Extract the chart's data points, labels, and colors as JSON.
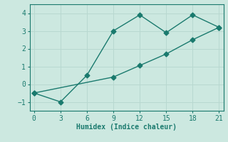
{
  "xlabel": "Humidex (Indice chaleur)",
  "bg_color": "#cce8e0",
  "grid_color": "#b8d8d0",
  "line_color": "#1a7a6e",
  "line1_x": [
    0,
    3,
    6,
    9,
    12,
    15,
    18,
    21
  ],
  "line1_y": [
    -0.5,
    -1.0,
    0.5,
    3.0,
    3.9,
    2.9,
    3.9,
    3.2
  ],
  "line2_x": [
    0,
    9,
    12,
    15,
    18,
    21
  ],
  "line2_y": [
    -0.5,
    0.4,
    1.05,
    1.7,
    2.5,
    3.2
  ],
  "xlim": [
    -0.5,
    21.5
  ],
  "ylim": [
    -1.5,
    4.5
  ],
  "xticks": [
    0,
    3,
    6,
    9,
    12,
    15,
    18,
    21
  ],
  "yticks": [
    -1,
    0,
    1,
    2,
    3,
    4
  ],
  "markersize": 3.5,
  "linewidth": 1.0
}
